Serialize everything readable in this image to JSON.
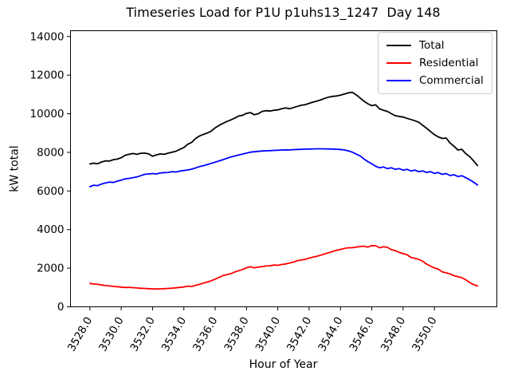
{
  "figure": {
    "background": "#ffffff"
  },
  "chart_data": {
    "type": "line",
    "title": "Timeseries Load for P1U p1uhs13_1247  Day 148",
    "xlabel": "Hour of Year",
    "ylabel": "kW total",
    "xlim": [
      3526.7625,
      3553.9875
    ],
    "ylim": [
      0,
      14300
    ],
    "grid": false,
    "legend_position": "upper right",
    "xticks": [
      {
        "value": 3528,
        "label": "3528.0"
      },
      {
        "value": 3530,
        "label": "3530.0"
      },
      {
        "value": 3532,
        "label": "3532.0"
      },
      {
        "value": 3534,
        "label": "3534.0"
      },
      {
        "value": 3536,
        "label": "3536.0"
      },
      {
        "value": 3538,
        "label": "3538.0"
      },
      {
        "value": 3540,
        "label": "3540.0"
      },
      {
        "value": 3542,
        "label": "3542.0"
      },
      {
        "value": 3544,
        "label": "3544.0"
      },
      {
        "value": 3546,
        "label": "3546.0"
      },
      {
        "value": 3548,
        "label": "3548.0"
      },
      {
        "value": 3550,
        "label": "3550.0"
      }
    ],
    "yticks": [
      {
        "value": 0,
        "label": "0"
      },
      {
        "value": 2000,
        "label": "2000"
      },
      {
        "value": 4000,
        "label": "4000"
      },
      {
        "value": 6000,
        "label": "6000"
      },
      {
        "value": 8000,
        "label": "8000"
      },
      {
        "value": 10000,
        "label": "10000"
      },
      {
        "value": 12000,
        "label": "12000"
      },
      {
        "value": 14000,
        "label": "14000"
      }
    ],
    "x": [
      3528.0,
      3528.25,
      3528.5,
      3528.75,
      3529.0,
      3529.25,
      3529.5,
      3529.75,
      3530.0,
      3530.25,
      3530.5,
      3530.75,
      3531.0,
      3531.25,
      3531.5,
      3531.75,
      3532.0,
      3532.25,
      3532.5,
      3532.75,
      3533.0,
      3533.25,
      3533.5,
      3533.75,
      3534.0,
      3534.25,
      3534.5,
      3534.75,
      3535.0,
      3535.25,
      3535.5,
      3535.75,
      3536.0,
      3536.25,
      3536.5,
      3536.75,
      3537.0,
      3537.25,
      3537.5,
      3537.75,
      3538.0,
      3538.25,
      3538.5,
      3538.75,
      3539.0,
      3539.25,
      3539.5,
      3539.75,
      3540.0,
      3540.25,
      3540.5,
      3540.75,
      3541.0,
      3541.25,
      3541.5,
      3541.75,
      3542.0,
      3542.25,
      3542.5,
      3542.75,
      3543.0,
      3543.25,
      3543.5,
      3543.75,
      3544.0,
      3544.25,
      3544.5,
      3544.75,
      3545.0,
      3545.25,
      3545.5,
      3545.75,
      3546.0,
      3546.25,
      3546.5,
      3546.75,
      3547.0,
      3547.25,
      3547.5,
      3547.75,
      3548.0,
      3548.25,
      3548.5,
      3548.75,
      3549.0,
      3549.25,
      3549.5,
      3549.75,
      3550.0,
      3550.25,
      3550.5,
      3550.75,
      3551.0,
      3551.25,
      3551.5,
      3551.75,
      3552.0,
      3552.25,
      3552.5,
      3552.75
    ],
    "series": [
      {
        "name": "Total",
        "color": "#000000",
        "values": [
          7400,
          7440,
          7410,
          7500,
          7560,
          7550,
          7620,
          7650,
          7720,
          7850,
          7900,
          7940,
          7900,
          7950,
          7960,
          7920,
          7800,
          7870,
          7920,
          7900,
          7960,
          8010,
          8060,
          8160,
          8250,
          8420,
          8520,
          8720,
          8850,
          8930,
          9000,
          9100,
          9270,
          9400,
          9500,
          9600,
          9680,
          9780,
          9880,
          9920,
          10020,
          10060,
          9950,
          10000,
          10120,
          10160,
          10140,
          10180,
          10200,
          10260,
          10300,
          10260,
          10320,
          10380,
          10440,
          10470,
          10540,
          10600,
          10660,
          10720,
          10800,
          10860,
          10900,
          10920,
          10960,
          11020,
          11080,
          11110,
          10980,
          10820,
          10650,
          10520,
          10420,
          10460,
          10250,
          10180,
          10120,
          10000,
          9900,
          9860,
          9830,
          9760,
          9700,
          9640,
          9560,
          9400,
          9250,
          9080,
          8920,
          8800,
          8720,
          8740,
          8480,
          8320,
          8120,
          8160,
          7940,
          7780,
          7560,
          7320
        ]
      },
      {
        "name": "Residential",
        "color": "#ff0000",
        "values": [
          1210,
          1180,
          1160,
          1130,
          1100,
          1080,
          1060,
          1040,
          1020,
          1000,
          1010,
          990,
          975,
          960,
          950,
          940,
          930,
          920,
          930,
          940,
          950,
          965,
          985,
          1005,
          1030,
          1070,
          1055,
          1110,
          1160,
          1230,
          1280,
          1350,
          1430,
          1520,
          1620,
          1660,
          1720,
          1800,
          1870,
          1930,
          2020,
          2080,
          2020,
          2060,
          2080,
          2110,
          2130,
          2160,
          2150,
          2190,
          2220,
          2270,
          2320,
          2390,
          2420,
          2460,
          2520,
          2570,
          2620,
          2680,
          2740,
          2800,
          2870,
          2920,
          2970,
          3020,
          3060,
          3060,
          3090,
          3120,
          3140,
          3090,
          3170,
          3160,
          3060,
          3110,
          3080,
          2960,
          2910,
          2820,
          2760,
          2700,
          2560,
          2510,
          2460,
          2360,
          2210,
          2110,
          2010,
          1950,
          1810,
          1760,
          1700,
          1610,
          1560,
          1510,
          1400,
          1260,
          1150,
          1080
        ]
      },
      {
        "name": "Commercial",
        "color": "#0000ff",
        "values": [
          6220,
          6300,
          6280,
          6360,
          6420,
          6460,
          6440,
          6510,
          6560,
          6630,
          6650,
          6690,
          6730,
          6790,
          6860,
          6880,
          6900,
          6880,
          6930,
          6950,
          6960,
          7000,
          6980,
          7030,
          7060,
          7090,
          7130,
          7190,
          7260,
          7310,
          7370,
          7430,
          7490,
          7560,
          7620,
          7690,
          7760,
          7810,
          7860,
          7910,
          7960,
          8010,
          8030,
          8050,
          8070,
          8080,
          8090,
          8100,
          8110,
          8120,
          8130,
          8120,
          8140,
          8150,
          8160,
          8165,
          8170,
          8180,
          8185,
          8185,
          8180,
          8175,
          8170,
          8160,
          8150,
          8120,
          8080,
          8010,
          7910,
          7820,
          7660,
          7520,
          7410,
          7280,
          7200,
          7240,
          7160,
          7200,
          7120,
          7160,
          7080,
          7120,
          7040,
          7080,
          7000,
          7040,
          6960,
          7000,
          6910,
          6950,
          6860,
          6900,
          6800,
          6840,
          6750,
          6790,
          6690,
          6580,
          6450,
          6310
        ]
      }
    ]
  }
}
